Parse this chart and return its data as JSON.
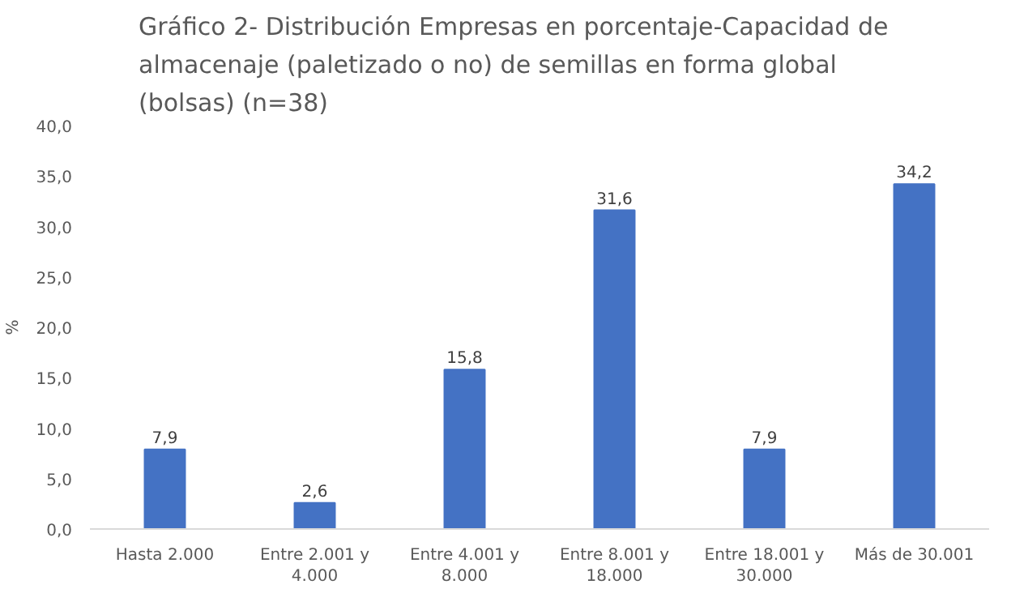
{
  "chart_data": {
    "type": "bar",
    "title": "Gráfico 2- Distribución Empresas en porcentaje-Capacidad de almacenaje (paletizado o no) de semillas en forma global (bolsas) (n=38)",
    "ylabel": "%",
    "categories": [
      "Hasta 2.000",
      "Entre 2.001 y 4.000",
      "Entre 4.001 y 8.000",
      "Entre 8.001 y 18.000",
      "Entre 18.001 y 30.000",
      "Más de 30.001"
    ],
    "values": [
      7.9,
      2.6,
      15.8,
      31.6,
      7.9,
      34.2
    ],
    "value_labels": [
      "7,9",
      "2,6",
      "15,8",
      "31,6",
      "7,9",
      "34,2"
    ],
    "color": "#4472c4",
    "ylim": [
      0,
      40
    ],
    "yticks": [
      {
        "value": 0,
        "label": "0,0"
      },
      {
        "value": 5,
        "label": "5,0"
      },
      {
        "value": 10,
        "label": "10,0"
      },
      {
        "value": 15,
        "label": "15,0"
      },
      {
        "value": 20,
        "label": "20,0"
      },
      {
        "value": 25,
        "label": "25,0"
      },
      {
        "value": 30,
        "label": "30,0"
      },
      {
        "value": 35,
        "label": "35,0"
      },
      {
        "value": 40,
        "label": "40,0"
      }
    ],
    "grid": false
  }
}
